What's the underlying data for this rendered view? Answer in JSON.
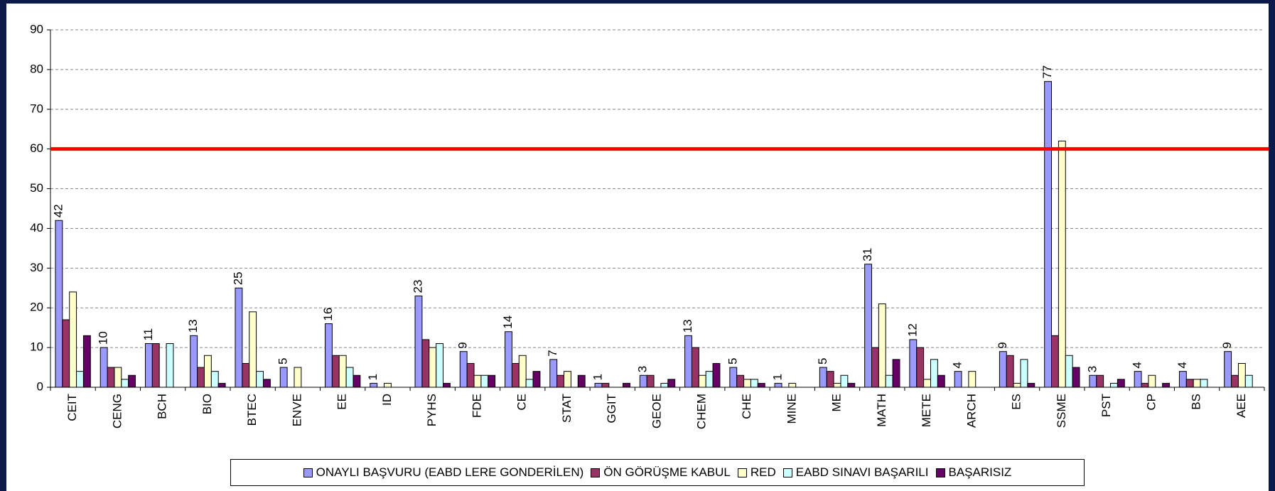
{
  "chart_data": {
    "type": "bar",
    "categories": [
      "CEIT",
      "CENG",
      "BCH",
      "BIO",
      "BTEC",
      "ENVE",
      "EE",
      "ID",
      "PYHS",
      "FDE",
      "CE",
      "STAT",
      "GGIT",
      "GEOE",
      "CHEM",
      "CHE",
      "MINE",
      "ME",
      "MATH",
      "METE",
      "ARCH",
      "ES",
      "SSME",
      "PST",
      "CP",
      "BS",
      "AEE"
    ],
    "series": [
      {
        "name": "ONAYLI BAŞVURU (EABD LERE GONDERİLEN)",
        "color": "#9999ff",
        "data_labels": true,
        "values": [
          42,
          10,
          11,
          13,
          25,
          5,
          16,
          1,
          23,
          9,
          14,
          7,
          1,
          3,
          13,
          5,
          1,
          5,
          31,
          12,
          4,
          9,
          77,
          3,
          4,
          4,
          9
        ]
      },
      {
        "name": "ÖN GÖRÜŞME KABUL",
        "color": "#993366",
        "values": [
          17,
          5,
          11,
          5,
          6,
          0,
          8,
          0,
          12,
          6,
          6,
          3,
          1,
          3,
          10,
          3,
          0,
          4,
          10,
          10,
          0,
          8,
          13,
          3,
          1,
          2,
          3
        ]
      },
      {
        "name": "RED",
        "color": "#ffffcc",
        "values": [
          24,
          5,
          0,
          8,
          19,
          5,
          8,
          1,
          10,
          3,
          8,
          4,
          0,
          0,
          3,
          2,
          1,
          1,
          21,
          2,
          4,
          1,
          62,
          0,
          3,
          2,
          6
        ]
      },
      {
        "name": "EABD SINAVI BAŞARILI",
        "color": "#ccffff",
        "values": [
          4,
          2,
          11,
          4,
          4,
          0,
          5,
          0,
          11,
          3,
          2,
          0,
          0,
          1,
          4,
          2,
          0,
          3,
          3,
          7,
          0,
          7,
          8,
          1,
          0,
          2,
          3
        ]
      },
      {
        "name": "BAŞARISIZ",
        "color": "#660066",
        "values": [
          13,
          3,
          0,
          1,
          2,
          0,
          3,
          0,
          1,
          3,
          4,
          3,
          1,
          2,
          6,
          1,
          0,
          1,
          7,
          3,
          0,
          1,
          5,
          2,
          1,
          0,
          0
        ]
      }
    ],
    "ylim": [
      0,
      90
    ],
    "yticks": [
      0,
      10,
      20,
      30,
      40,
      50,
      60,
      70,
      80,
      90
    ],
    "grid": true,
    "reference_line": {
      "value": 60,
      "color": "#ff0000"
    }
  }
}
